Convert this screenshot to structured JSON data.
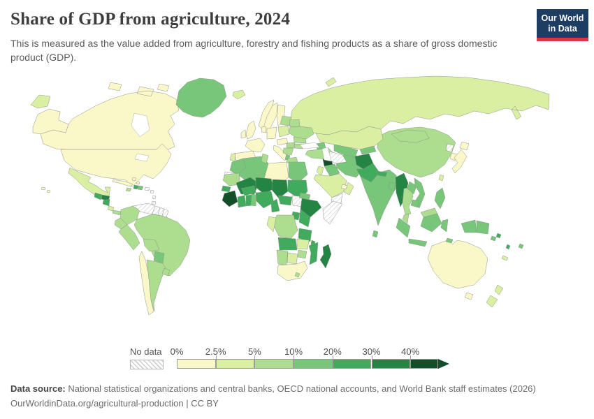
{
  "header": {
    "title": "Share of GDP from agriculture, 2024",
    "subtitle": "This is measured as the value added from agriculture, forestry and fishing products as a share of gross domestic product (GDP)."
  },
  "logo": {
    "line1": "Our World",
    "line2": "in Data",
    "bg": "#1d3d63",
    "accent": "#dc354a"
  },
  "legend": {
    "no_data_label": "No data"
  },
  "footer": {
    "source_label": "Data source:",
    "source_text": " National statistical organizations and central banks, OECD national accounts, and World Bank staff estimates (2026)",
    "note": "OurWorldinData.org/agricultural-production | CC BY"
  },
  "chart_data": {
    "type": "choropleth",
    "title": "Share of GDP from agriculture, 2024",
    "unit": "% of GDP",
    "legend_position": "bottom",
    "bins": [
      {
        "label": "0%",
        "range": "0-2.5%",
        "color": "#faf8c8"
      },
      {
        "label": "2.5%",
        "range": "2.5-5%",
        "color": "#d9f0a3"
      },
      {
        "label": "5%",
        "range": "5-10%",
        "color": "#addd8e"
      },
      {
        "label": "10%",
        "range": "10-20%",
        "color": "#78c679"
      },
      {
        "label": "20%",
        "range": "20-30%",
        "color": "#41ab5d"
      },
      {
        "label": "30%",
        "range": "30-40%",
        "color": "#238443"
      },
      {
        "label": "40%",
        "range": "40%+",
        "color": "#124f28"
      }
    ],
    "no_data": {
      "label": "No data",
      "hatch_color": "#cfcfcf"
    },
    "countries": [
      {
        "id": "russia",
        "name": "Russia",
        "range": "2.5-5%"
      },
      {
        "id": "canada",
        "name": "Canada",
        "range": "0-2.5%"
      },
      {
        "id": "united-states",
        "name": "United States",
        "range": "0-2.5%"
      },
      {
        "id": "greenland",
        "name": "Greenland",
        "range": "10-20%"
      },
      {
        "id": "china",
        "name": "China",
        "range": "5-10%"
      },
      {
        "id": "mongolia",
        "name": "Mongolia",
        "range": "5-10%"
      },
      {
        "id": "kazakhstan",
        "name": "Kazakhstan",
        "range": "2.5-5%"
      },
      {
        "id": "australia",
        "name": "Australia",
        "range": "0-2.5%"
      },
      {
        "id": "brazil",
        "name": "Brazil",
        "range": "5-10%"
      },
      {
        "id": "bolivia",
        "name": "Bolivia",
        "range": "5-10%"
      },
      {
        "id": "paraguay",
        "name": "Paraguay",
        "range": "10-20%"
      },
      {
        "id": "argentina",
        "name": "Argentina",
        "range": "5-10%"
      },
      {
        "id": "chile",
        "name": "Chile",
        "range": "0-2.5%"
      },
      {
        "id": "uruguay",
        "name": "Uruguay",
        "range": "5-10%"
      },
      {
        "id": "colombia",
        "name": "Colombia",
        "range": "5-10%"
      },
      {
        "id": "venezuela",
        "name": "Venezuela",
        "range": "no-data"
      },
      {
        "id": "guyana",
        "name": "Guyana",
        "range": "no-data"
      },
      {
        "id": "suriname",
        "name": "Suriname",
        "range": "no-data"
      },
      {
        "id": "french-guiana",
        "name": "French Guiana",
        "range": "no-data"
      },
      {
        "id": "ecuador",
        "name": "Ecuador",
        "range": "5-10%"
      },
      {
        "id": "peru",
        "name": "Peru",
        "range": "5-10%"
      },
      {
        "id": "mexico",
        "name": "Mexico",
        "range": "2.5-5%"
      },
      {
        "id": "guatemala",
        "name": "Guatemala",
        "range": "20-30%"
      },
      {
        "id": "honduras",
        "name": "Honduras",
        "range": "30-40%"
      },
      {
        "id": "nicaragua",
        "name": "Nicaragua",
        "range": "20-30%"
      },
      {
        "id": "costa-rica",
        "name": "Costa Rica",
        "range": "2.5-5%"
      },
      {
        "id": "panama",
        "name": "Panama",
        "range": "5-10%"
      },
      {
        "id": "cuba",
        "name": "Cuba",
        "range": "0-2.5%"
      },
      {
        "id": "jamaica",
        "name": "Jamaica",
        "range": "5-10%"
      },
      {
        "id": "haiti",
        "name": "Haiti",
        "range": "20-30%"
      },
      {
        "id": "dominican-republic",
        "name": "Dominican Republic",
        "range": "10-20%"
      },
      {
        "id": "puerto-rico",
        "name": "Puerto Rico",
        "range": "no-data"
      },
      {
        "id": "lesser-antilles",
        "name": "Lesser Antilles",
        "range": "no-data"
      },
      {
        "id": "bahamas",
        "name": "Bahamas",
        "range": "0-2.5%"
      },
      {
        "id": "iceland",
        "name": "Iceland",
        "range": "2.5-5%"
      },
      {
        "id": "norway",
        "name": "Norway",
        "range": "0-2.5%"
      },
      {
        "id": "sweden",
        "name": "Sweden",
        "range": "0-2.5%"
      },
      {
        "id": "finland",
        "name": "Finland",
        "range": "0-2.5%"
      },
      {
        "id": "denmark",
        "name": "Denmark",
        "range": "0-2.5%"
      },
      {
        "id": "united-kingdom",
        "name": "United Kingdom",
        "range": "0-2.5%"
      },
      {
        "id": "ireland",
        "name": "Ireland",
        "range": "0-2.5%"
      },
      {
        "id": "france",
        "name": "France",
        "range": "0-2.5%"
      },
      {
        "id": "spain",
        "name": "Spain",
        "range": "0-2.5%"
      },
      {
        "id": "portugal",
        "name": "Portugal",
        "range": "2.5-5%"
      },
      {
        "id": "germany",
        "name": "Germany",
        "range": "0-2.5%"
      },
      {
        "id": "netherlands",
        "name": "Netherlands",
        "range": "0-2.5%"
      },
      {
        "id": "italy",
        "name": "Italy",
        "range": "0-2.5%"
      },
      {
        "id": "czechia",
        "name": "Czechia",
        "range": "0-2.5%"
      },
      {
        "id": "poland",
        "name": "Poland",
        "range": "2.5-5%"
      },
      {
        "id": "hungary",
        "name": "Hungary",
        "range": "5-10%"
      },
      {
        "id": "serbia",
        "name": "Serbia",
        "range": "5-10%"
      },
      {
        "id": "albania",
        "name": "Albania",
        "range": "10-20%"
      },
      {
        "id": "greece",
        "name": "Greece",
        "range": "5-10%"
      },
      {
        "id": "romania",
        "name": "Romania",
        "range": "5-10%"
      },
      {
        "id": "bulgaria",
        "name": "Bulgaria",
        "range": "5-10%"
      },
      {
        "id": "lithuania",
        "name": "Lithuania",
        "range": "5-10%"
      },
      {
        "id": "belarus",
        "name": "Belarus",
        "range": "5-10%"
      },
      {
        "id": "ukraine",
        "name": "Ukraine",
        "range": "5-10%"
      },
      {
        "id": "turkey",
        "name": "Turkey",
        "range": "5-10%"
      },
      {
        "id": "georgia",
        "name": "Georgia",
        "range": "10-20%"
      },
      {
        "id": "syria",
        "name": "Syria",
        "range": "40%+"
      },
      {
        "id": "iraq",
        "name": "Iraq",
        "range": "10-20%"
      },
      {
        "id": "iran",
        "name": "Iran",
        "range": "10-20%"
      },
      {
        "id": "jordan",
        "name": "Jordan",
        "range": "2.5-5%"
      },
      {
        "id": "saudi-arabia",
        "name": "Saudi Arabia",
        "range": "2.5-5%"
      },
      {
        "id": "yemen",
        "name": "Yemen",
        "range": "no-data"
      },
      {
        "id": "oman",
        "name": "Oman",
        "range": "2.5-5%"
      },
      {
        "id": "united-arab-emirates",
        "name": "United Arab Emirates",
        "range": "0-2.5%"
      },
      {
        "id": "uzbekistan",
        "name": "Uzbekistan",
        "range": "10-20%"
      },
      {
        "id": "turkmenistan",
        "name": "Turkmenistan",
        "range": "no-data"
      },
      {
        "id": "kyrgyzstan",
        "name": "Kyrgyzstan",
        "range": "10-20%"
      },
      {
        "id": "afghanistan",
        "name": "Afghanistan",
        "range": "30-40%"
      },
      {
        "id": "pakistan",
        "name": "Pakistan",
        "range": "20-30%"
      },
      {
        "id": "india",
        "name": "India",
        "range": "10-20%"
      },
      {
        "id": "nepal",
        "name": "Nepal",
        "range": "20-30%"
      },
      {
        "id": "bangladesh",
        "name": "Bangladesh",
        "range": "10-20%"
      },
      {
        "id": "sri-lanka",
        "name": "Sri Lanka",
        "range": "10-20%"
      },
      {
        "id": "north-korea",
        "name": "North Korea",
        "range": "no-data"
      },
      {
        "id": "south-korea",
        "name": "South Korea",
        "range": "0-2.5%"
      },
      {
        "id": "japan",
        "name": "Japan",
        "range": "0-2.5%"
      },
      {
        "id": "taiwan",
        "name": "Taiwan",
        "range": "2.5-5%"
      },
      {
        "id": "myanmar",
        "name": "Myanmar",
        "range": "30-40%"
      },
      {
        "id": "thailand",
        "name": "Thailand",
        "range": "5-10%"
      },
      {
        "id": "laos",
        "name": "Laos",
        "range": "10-20%"
      },
      {
        "id": "vietnam",
        "name": "Vietnam",
        "range": "10-20%"
      },
      {
        "id": "cambodia",
        "name": "Cambodia",
        "range": "10-20%"
      },
      {
        "id": "malaysia",
        "name": "Malaysia",
        "range": "5-10%"
      },
      {
        "id": "indonesia",
        "name": "Indonesia",
        "range": "10-20%"
      },
      {
        "id": "philippines",
        "name": "Philippines",
        "range": "10-20%"
      },
      {
        "id": "papua-new-guinea",
        "name": "Papua New Guinea",
        "range": "10-20%"
      },
      {
        "id": "solomon-islands",
        "name": "Solomon Islands",
        "range": "20-30%"
      },
      {
        "id": "vanuatu",
        "name": "Vanuatu",
        "range": "20-30%"
      },
      {
        "id": "fiji",
        "name": "Fiji",
        "range": "10-20%"
      },
      {
        "id": "new-caledonia",
        "name": "New Caledonia",
        "range": "2.5-5%"
      },
      {
        "id": "new-zealand",
        "name": "New Zealand",
        "range": "2.5-5%"
      },
      {
        "id": "morocco",
        "name": "Morocco",
        "range": "10-20%"
      },
      {
        "id": "western-sahara",
        "name": "Western Sahara",
        "range": "no-data"
      },
      {
        "id": "algeria",
        "name": "Algeria",
        "range": "10-20%"
      },
      {
        "id": "tunisia",
        "name": "Tunisia",
        "range": "5-10%"
      },
      {
        "id": "libya",
        "name": "Libya",
        "range": "0-2.5%"
      },
      {
        "id": "egypt",
        "name": "Egypt",
        "range": "10-20%"
      },
      {
        "id": "mauritania",
        "name": "Mauritania",
        "range": "5-10%"
      },
      {
        "id": "mali",
        "name": "Mali",
        "range": "30-40%"
      },
      {
        "id": "niger",
        "name": "Niger",
        "range": "30-40%"
      },
      {
        "id": "chad",
        "name": "Chad",
        "range": "30-40%"
      },
      {
        "id": "sudan",
        "name": "Sudan",
        "range": "20-30%"
      },
      {
        "id": "senegal",
        "name": "Senegal",
        "range": "20-30%"
      },
      {
        "id": "sierra-leone",
        "name": "Sierra Leone",
        "range": "40%+"
      },
      {
        "id": "cote-divoire",
        "name": "Cote d'Ivoire",
        "range": "20-30%"
      },
      {
        "id": "ghana",
        "name": "Ghana",
        "range": "20-30%"
      },
      {
        "id": "benin",
        "name": "Benin",
        "range": "10-20%"
      },
      {
        "id": "burkina-faso",
        "name": "Burkina Faso",
        "range": "20-30%"
      },
      {
        "id": "nigeria",
        "name": "Nigeria",
        "range": "20-30%"
      },
      {
        "id": "cameroon",
        "name": "Cameroon",
        "range": "20-30%"
      },
      {
        "id": "central-african-republic",
        "name": "Central African Republic",
        "range": "20-30%"
      },
      {
        "id": "south-sudan",
        "name": "South Sudan",
        "range": "no-data"
      },
      {
        "id": "ethiopia",
        "name": "Ethiopia",
        "range": "30-40%"
      },
      {
        "id": "eritrea",
        "name": "Eritrea",
        "range": "10-20%"
      },
      {
        "id": "somalia",
        "name": "Somalia",
        "range": "no-data"
      },
      {
        "id": "kenya",
        "name": "Kenya",
        "range": "20-30%"
      },
      {
        "id": "uganda",
        "name": "Uganda",
        "range": "20-30%"
      },
      {
        "id": "democratic-republic-of-congo",
        "name": "Democratic Republic of Congo",
        "range": "5-10%"
      },
      {
        "id": "congo",
        "name": "Congo",
        "range": "2.5-5%"
      },
      {
        "id": "tanzania",
        "name": "Tanzania",
        "range": "20-30%"
      },
      {
        "id": "angola",
        "name": "Angola",
        "range": "20-30%"
      },
      {
        "id": "zambia",
        "name": "Zambia",
        "range": "2.5-5%"
      },
      {
        "id": "malawi",
        "name": "Malawi",
        "range": "20-30%"
      },
      {
        "id": "mozambique",
        "name": "Mozambique",
        "range": "20-30%"
      },
      {
        "id": "zimbabwe",
        "name": "Zimbabwe",
        "range": "5-10%"
      },
      {
        "id": "botswana",
        "name": "Botswana",
        "range": "2.5-5%"
      },
      {
        "id": "namibia",
        "name": "Namibia",
        "range": "5-10%"
      },
      {
        "id": "south-africa",
        "name": "South Africa",
        "range": "0-2.5%"
      },
      {
        "id": "lesotho",
        "name": "Lesotho",
        "range": "5-10%"
      },
      {
        "id": "madagascar",
        "name": "Madagascar",
        "range": "30-40%"
      }
    ]
  }
}
